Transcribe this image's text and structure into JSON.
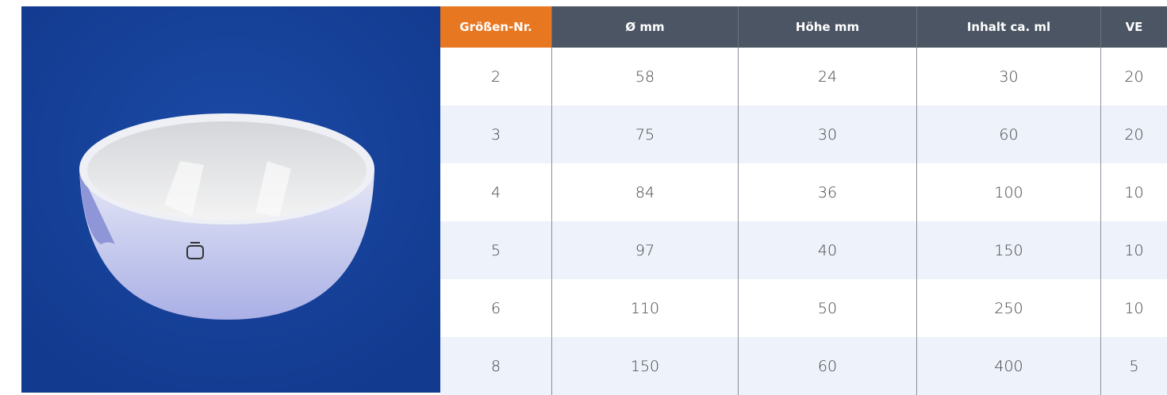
{
  "table": {
    "header": [
      "Größen-Nr.",
      "Ø mm",
      "Höhe mm",
      "Inhalt ca. ml",
      "VE"
    ],
    "rows": [
      [
        2,
        58,
        24,
        30,
        20
      ],
      [
        3,
        75,
        30,
        60,
        20
      ],
      [
        4,
        84,
        36,
        100,
        10
      ],
      [
        5,
        97,
        40,
        150,
        10
      ],
      [
        6,
        110,
        50,
        250,
        10
      ],
      [
        8,
        150,
        60,
        400,
        5
      ]
    ]
  }
}
